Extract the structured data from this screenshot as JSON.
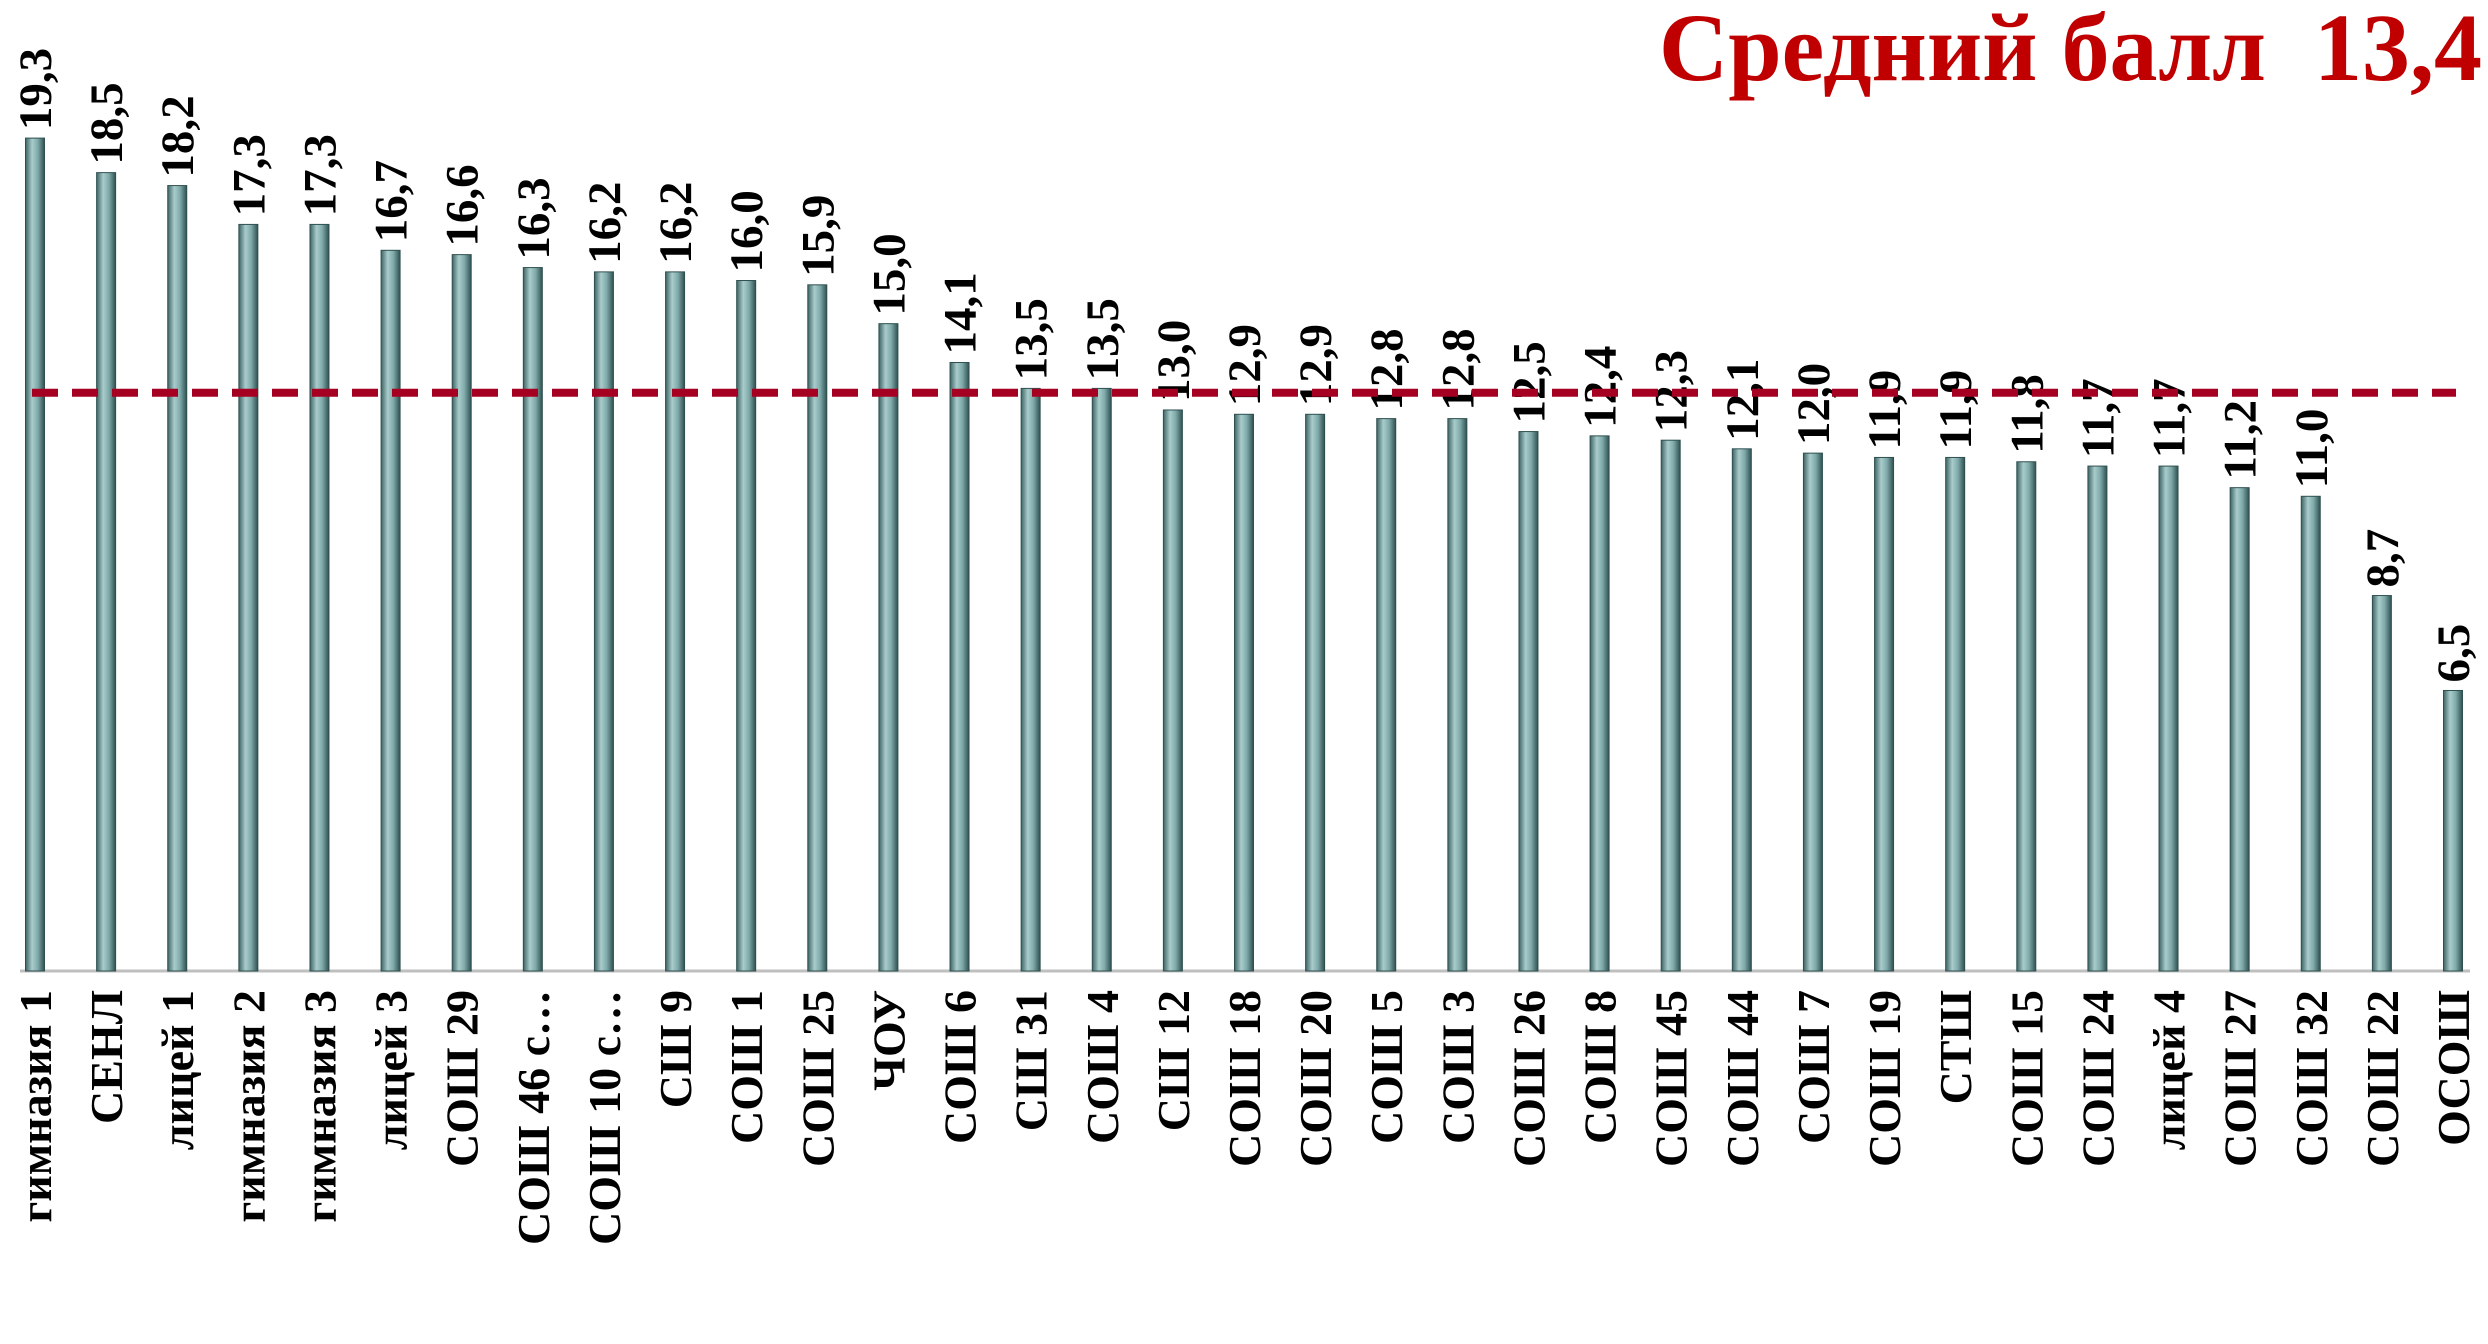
{
  "chart_data": {
    "type": "bar",
    "title": "Средний балл  13,4",
    "average": 13.4,
    "average_color": "#a50021",
    "color": "#7fa9a9",
    "ylim": [
      0,
      22.5
    ],
    "categories": [
      "гимназия 1",
      "СЕНЛ",
      "лицей 1",
      "гимназия 2",
      "гимназия 3",
      "лицей 3",
      "СОШ 29",
      "СОШ 46 с…",
      "СОШ 10 с…",
      "СШ 9",
      "СОШ 1",
      "СОШ 25",
      "ЧОУ",
      "СОШ 6",
      "СШ 31",
      "СОШ 4",
      "СШ 12",
      "СОШ 18",
      "СОШ 20",
      "СОШ 5",
      "СОШ 3",
      "СОШ 26",
      "СОШ 8",
      "СОШ 45",
      "СОШ 44",
      "СОШ 7",
      "СОШ 19",
      "СТШ",
      "СОШ 15",
      "СОШ 24",
      "лицей 4",
      "СОШ 27",
      "СОШ 32",
      "СОШ 22",
      "ОСОШ"
    ],
    "values": [
      19.3,
      18.5,
      18.2,
      17.3,
      17.3,
      16.7,
      16.6,
      16.3,
      16.2,
      16.2,
      16.0,
      15.9,
      15.0,
      14.1,
      13.5,
      13.5,
      13.0,
      12.9,
      12.9,
      12.8,
      12.8,
      12.5,
      12.4,
      12.3,
      12.1,
      12.0,
      11.9,
      11.9,
      11.8,
      11.7,
      11.7,
      11.2,
      11.0,
      8.7,
      6.5
    ],
    "value_labels": [
      "19,3",
      "18,5",
      "18,2",
      "17,3",
      "17,3",
      "16,7",
      "16,6",
      "16,3",
      "16,2",
      "16,2",
      "16,0",
      "15,9",
      "15,0",
      "14,1",
      "13,5",
      "13,5",
      "13,0",
      "12,9",
      "12,9",
      "12,8",
      "12,8",
      "12,5",
      "12,4",
      "12,3",
      "12,1",
      "12,0",
      "11,9",
      "11,9",
      "11,8",
      "11,7",
      "11,7",
      "11,2",
      "11,0",
      "8,7",
      "6,5"
    ]
  }
}
